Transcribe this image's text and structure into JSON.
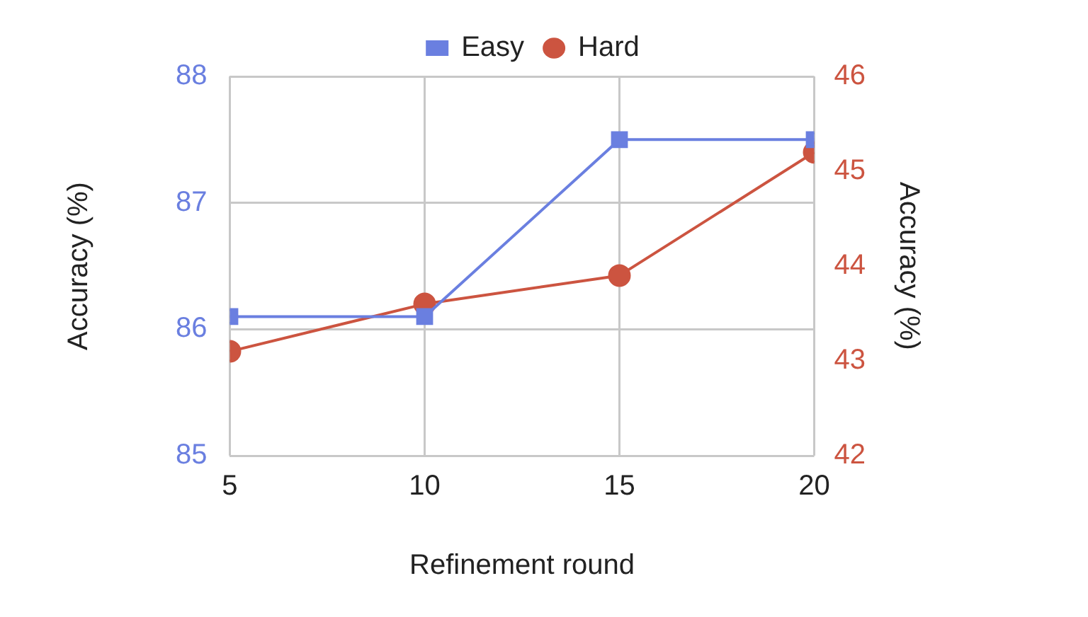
{
  "chart_data": {
    "type": "line",
    "xlabel": "Refinement round",
    "ylabel": "Accuracy (%)",
    "y2label": "Accuracy (%)",
    "x": [
      5,
      10,
      15,
      20
    ],
    "xlim": [
      5,
      20
    ],
    "xticks": [
      5,
      10,
      15,
      20
    ],
    "ylim": [
      85,
      88
    ],
    "yticks": [
      85,
      86,
      87,
      88
    ],
    "y2lim": [
      42,
      46
    ],
    "y2ticks": [
      42,
      43,
      44,
      45,
      46
    ],
    "grid": true,
    "legend": "top",
    "series": [
      {
        "name": "Easy",
        "color": "#6a7fe0",
        "values": [
          86.1,
          86.1,
          87.5,
          87.5
        ],
        "marker": "square"
      },
      {
        "name": "Hard",
        "color": "#cc5440",
        "values": [
          43.1,
          43.6,
          43.9,
          45.2
        ],
        "marker": "circle",
        "axis": "y2"
      }
    ]
  }
}
